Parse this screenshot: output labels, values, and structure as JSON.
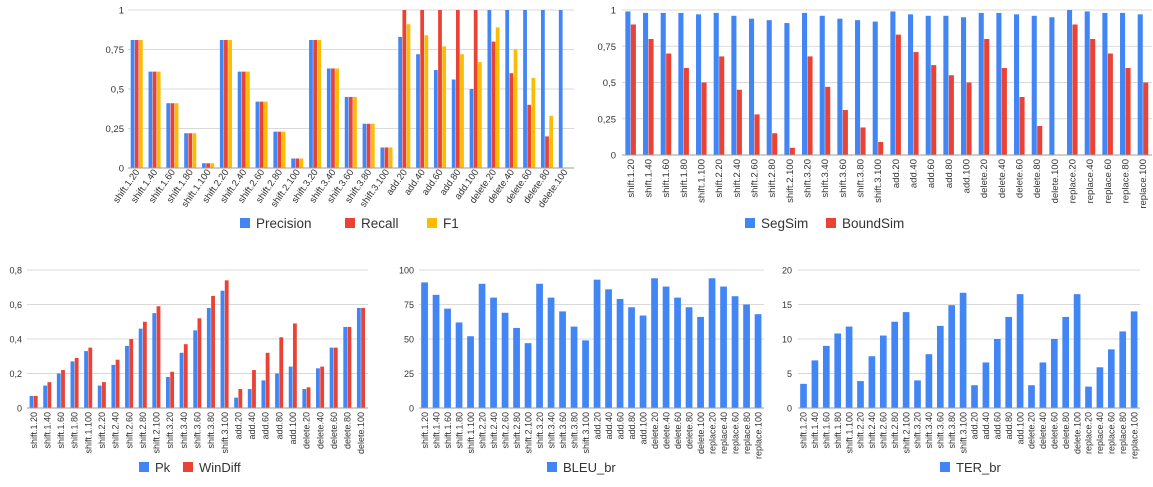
{
  "colors": {
    "blue": "#4285f4",
    "red": "#ea4335",
    "yellow": "#fbbc04",
    "grid": "#d9d9d9",
    "axis": "#9e9e9e",
    "text": "#333333"
  },
  "chart_data": [
    {
      "type": "bar",
      "categories": [
        "shift.1.20",
        "shift.1.40",
        "shift.1.60",
        "shift.1.80",
        "shift.1.100",
        "shift.2.20",
        "shift.2.40",
        "shift.2.60",
        "shift.2.80",
        "shift.2.100",
        "shift.3.20",
        "shift.3.40",
        "shift.3.60",
        "shift.3.80",
        "shift.3.100",
        "add.20",
        "add.40",
        "add.60",
        "add.80",
        "add.100",
        "delete.20",
        "delete.40",
        "delete.60",
        "delete.80",
        "delete.100"
      ],
      "series": [
        {
          "name": "Precision",
          "color": "blue",
          "values": [
            0.81,
            0.61,
            0.41,
            0.22,
            0.03,
            0.81,
            0.61,
            0.42,
            0.23,
            0.06,
            0.81,
            0.63,
            0.45,
            0.28,
            0.13,
            0.83,
            0.72,
            0.62,
            0.56,
            0.5,
            1,
            1,
            1,
            1,
            1
          ]
        },
        {
          "name": "Recall",
          "color": "red",
          "values": [
            0.81,
            0.61,
            0.41,
            0.22,
            0.03,
            0.81,
            0.61,
            0.42,
            0.23,
            0.06,
            0.81,
            0.63,
            0.45,
            0.28,
            0.13,
            1,
            1,
            1,
            1,
            1,
            0.8,
            0.6,
            0.4,
            0.2,
            0
          ]
        },
        {
          "name": "F1",
          "color": "yellow",
          "values": [
            0.81,
            0.61,
            0.41,
            0.22,
            0.03,
            0.81,
            0.61,
            0.42,
            0.23,
            0.06,
            0.81,
            0.63,
            0.45,
            0.28,
            0.13,
            0.91,
            0.84,
            0.77,
            0.72,
            0.67,
            0.89,
            0.75,
            0.57,
            0.33,
            0
          ]
        }
      ],
      "yticks": [
        "0",
        "0,25",
        "0,5",
        "0,75",
        "1"
      ],
      "ytick_values": [
        0,
        0.25,
        0.5,
        0.75,
        1
      ],
      "ylim": [
        0,
        1
      ],
      "legend": "bottom"
    },
    {
      "type": "bar",
      "categories": [
        "shift.1.20",
        "shift.1.40",
        "shift.1.60",
        "shift.1.80",
        "shift.1.100",
        "shift.2.20",
        "shift.2.40",
        "shift.2.60",
        "shift.2.80",
        "shift.2.100",
        "shift.3.20",
        "shift.3.40",
        "shift.3.60",
        "shift.3.80",
        "shift.3.100",
        "add.20",
        "add.40",
        "add.60",
        "add.80",
        "add.100",
        "delete.20",
        "delete.40",
        "delete.60",
        "delete.80",
        "delete.100",
        "replace.20",
        "replace.40",
        "replace.60",
        "replace.80",
        "replace.100"
      ],
      "series": [
        {
          "name": "SegSim",
          "color": "blue",
          "values": [
            0.99,
            0.98,
            0.98,
            0.98,
            0.97,
            0.98,
            0.96,
            0.94,
            0.93,
            0.91,
            0.98,
            0.96,
            0.94,
            0.93,
            0.92,
            0.99,
            0.97,
            0.96,
            0.96,
            0.95,
            0.98,
            0.98,
            0.97,
            0.96,
            0.95,
            1,
            0.99,
            0.98,
            0.98,
            0.97
          ]
        },
        {
          "name": "BoundSim",
          "color": "red",
          "values": [
            0.9,
            0.8,
            0.7,
            0.6,
            0.5,
            0.68,
            0.45,
            0.28,
            0.15,
            0.05,
            0.68,
            0.47,
            0.31,
            0.19,
            0.09,
            0.83,
            0.71,
            0.62,
            0.55,
            0.5,
            0.8,
            0.6,
            0.4,
            0.2,
            0,
            0.9,
            0.8,
            0.7,
            0.6,
            0.5
          ]
        }
      ],
      "yticks": [
        "0",
        "0,25",
        "0,5",
        "0,75",
        "1"
      ],
      "ytick_values": [
        0,
        0.25,
        0.5,
        0.75,
        1
      ],
      "ylim": [
        0,
        1
      ],
      "legend": "bottom"
    },
    {
      "type": "bar",
      "categories": [
        "shift.1.20",
        "shift.1.40",
        "shift.1.60",
        "shift.1.80",
        "shift.1.100",
        "shift.2.20",
        "shift.2.40",
        "shift.2.60",
        "shift.2.80",
        "shift.2.100",
        "shift.3.20",
        "shift.3.40",
        "shift.3.60",
        "shift.3.80",
        "shift.3.100",
        "add.20",
        "add.40",
        "add.60",
        "add.80",
        "add.100",
        "delete.20",
        "delete.40",
        "delete.60",
        "delete.80",
        "delete.100"
      ],
      "series": [
        {
          "name": "Pk",
          "color": "blue",
          "values": [
            0.07,
            0.13,
            0.2,
            0.27,
            0.33,
            0.13,
            0.25,
            0.36,
            0.46,
            0.55,
            0.18,
            0.32,
            0.45,
            0.58,
            0.68,
            0.06,
            0.11,
            0.16,
            0.2,
            0.24,
            0.11,
            0.23,
            0.35,
            0.47,
            0.58
          ]
        },
        {
          "name": "WinDiff",
          "color": "red",
          "values": [
            0.07,
            0.15,
            0.22,
            0.29,
            0.35,
            0.15,
            0.28,
            0.4,
            0.5,
            0.59,
            0.21,
            0.37,
            0.52,
            0.65,
            0.74,
            0.11,
            0.22,
            0.32,
            0.41,
            0.49,
            0.12,
            0.24,
            0.35,
            0.47,
            0.58
          ]
        }
      ],
      "yticks": [
        "0",
        "0,2",
        "0,4",
        "0,6",
        "0,8"
      ],
      "ytick_values": [
        0,
        0.2,
        0.4,
        0.6,
        0.8
      ],
      "ylim": [
        0,
        0.8
      ],
      "legend": "bottom"
    },
    {
      "type": "bar",
      "categories": [
        "shift.1.20",
        "shift.1.40",
        "shift.1.60",
        "shift.1.80",
        "shift.1.100",
        "shift.2.20",
        "shift.2.40",
        "shift.2.60",
        "shift.2.80",
        "shift.2.100",
        "shift.3.20",
        "shift.3.40",
        "shift.3.60",
        "shift.3.80",
        "shift.3.100",
        "add.20",
        "add.40",
        "add.60",
        "add.80",
        "add.100",
        "delete.20",
        "delete.40",
        "delete.60",
        "delete.80",
        "delete.100",
        "replace.20",
        "replace.40",
        "replace.60",
        "replace.80",
        "replace.100"
      ],
      "series": [
        {
          "name": "BLEU_br",
          "color": "blue",
          "values": [
            91,
            82,
            72,
            62,
            52,
            90,
            80,
            69,
            58,
            47,
            90,
            80,
            70,
            59,
            49,
            93,
            86,
            79,
            73,
            67,
            94,
            88,
            80,
            73,
            66,
            94,
            88,
            81,
            75,
            68
          ]
        }
      ],
      "yticks": [
        "0",
        "25",
        "50",
        "75",
        "100"
      ],
      "ytick_values": [
        0,
        25,
        50,
        75,
        100
      ],
      "ylim": [
        0,
        100
      ],
      "legend": "bottom"
    },
    {
      "type": "bar",
      "categories": [
        "shift.1.20",
        "shift.1.40",
        "shift.1.60",
        "shift.1.80",
        "shift.1.100",
        "shift.2.20",
        "shift.2.40",
        "shift.2.60",
        "shift.2.80",
        "shift.2.100",
        "shift.3.20",
        "shift.3.40",
        "shift.3.60",
        "shift.3.80",
        "shift.3.100",
        "add.20",
        "add.40",
        "add.60",
        "add.80",
        "add.100",
        "delete.20",
        "delete.40",
        "delete.60",
        "delete.80",
        "delete.100",
        "replace.20",
        "replace.40",
        "replace.60",
        "replace.80",
        "replace.100"
      ],
      "series": [
        {
          "name": "TER_br",
          "color": "blue",
          "values": [
            3.5,
            6.9,
            9,
            10.8,
            11.8,
            3.9,
            7.5,
            10.5,
            12.5,
            13.9,
            4,
            7.8,
            11.9,
            14.9,
            16.7,
            3.3,
            6.6,
            10,
            13.2,
            16.5,
            3.3,
            6.6,
            10,
            13.2,
            16.5,
            3.1,
            5.9,
            8.5,
            11.1,
            14
          ]
        }
      ],
      "yticks": [
        "0",
        "5",
        "10",
        "15",
        "20"
      ],
      "ytick_values": [
        0,
        5,
        10,
        15,
        20
      ],
      "ylim": [
        0,
        20
      ],
      "legend": "bottom"
    }
  ]
}
